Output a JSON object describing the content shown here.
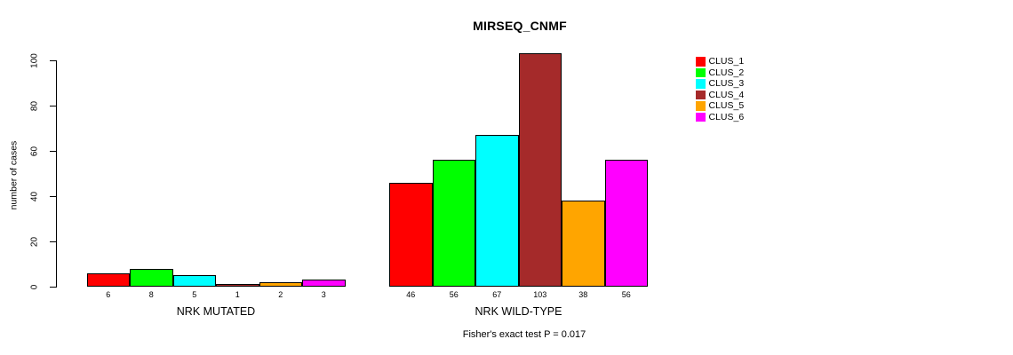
{
  "chart_data": {
    "type": "bar",
    "title": "MIRSEQ_CNMF",
    "ylabel": "number of cases",
    "ylim": [
      0,
      100
    ],
    "yticks": [
      0,
      20,
      40,
      60,
      80,
      100
    ],
    "grid": false,
    "legend_position": "right",
    "background_color": "#ffffff",
    "categories": [
      "NRK MUTATED",
      "NRK WILD-TYPE"
    ],
    "series": [
      {
        "name": "CLUS_1",
        "color": "#ff0000",
        "values": [
          6,
          46
        ]
      },
      {
        "name": "CLUS_2",
        "color": "#00ff00",
        "values": [
          8,
          56
        ]
      },
      {
        "name": "CLUS_3",
        "color": "#00ffff",
        "values": [
          5,
          67
        ]
      },
      {
        "name": "CLUS_4",
        "color": "#a52a2a",
        "values": [
          1,
          103
        ]
      },
      {
        "name": "CLUS_5",
        "color": "#ffa500",
        "values": [
          2,
          38
        ]
      },
      {
        "name": "CLUS_6",
        "color": "#ff00ff",
        "values": [
          3,
          56
        ]
      }
    ],
    "bar_value_labels": {
      "NRK MUTATED": [
        6,
        8,
        5,
        1,
        2,
        3
      ],
      "NRK WILD-TYPE": [
        46,
        56,
        67,
        103,
        38,
        56
      ]
    },
    "annotation": "Fisher's exact test P = 0.017"
  }
}
